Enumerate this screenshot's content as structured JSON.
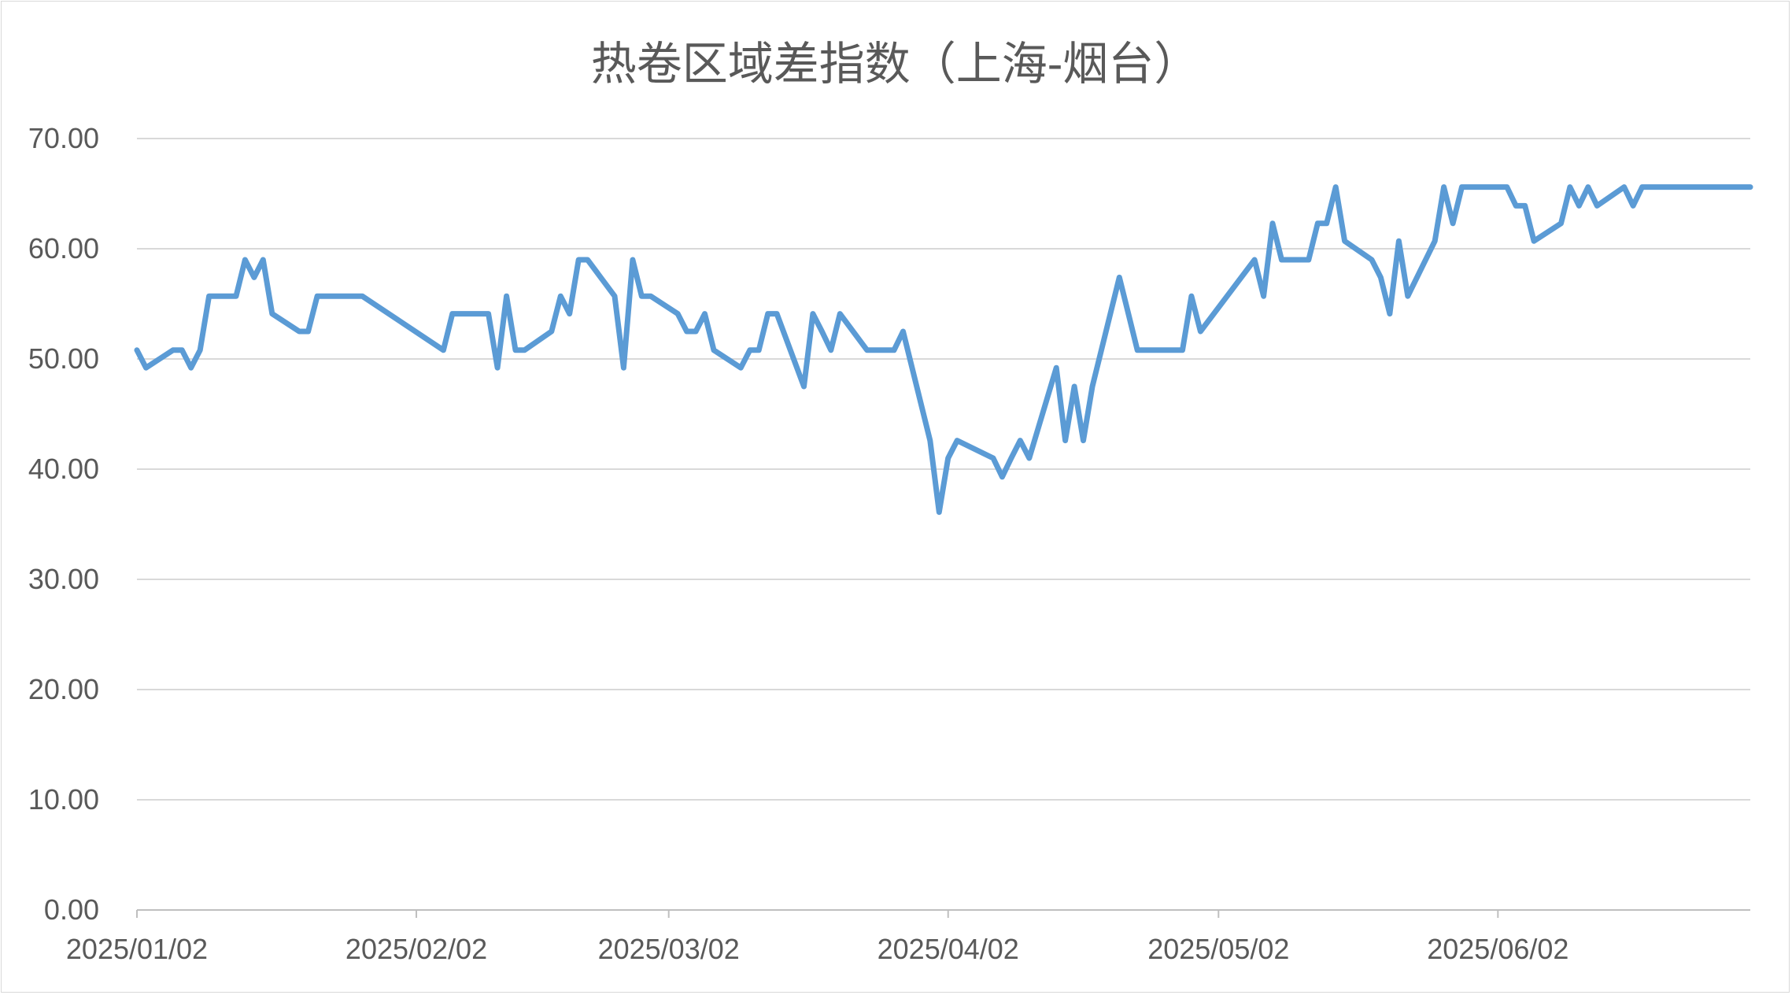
{
  "chart_data": {
    "type": "line",
    "title": "热卷区域差指数（上海-烟台）",
    "xlabel": "",
    "ylabel": "",
    "ylim": [
      0,
      70
    ],
    "yticks": [
      "0.00",
      "10.00",
      "20.00",
      "30.00",
      "40.00",
      "50.00",
      "60.00",
      "70.00"
    ],
    "xticks": [
      "2025/01/02",
      "2025/02/02",
      "2025/03/02",
      "2025/04/02",
      "2025/05/02",
      "2025/06/02"
    ],
    "grid": true,
    "color": "#5b9bd5",
    "series": [
      {
        "x": [
          "2025-01-02",
          "2025-01-03",
          "2025-01-06",
          "2025-01-07",
          "2025-01-08",
          "2025-01-09",
          "2025-01-10",
          "2025-01-13",
          "2025-01-14",
          "2025-01-15",
          "2025-01-16",
          "2025-01-17",
          "2025-01-20",
          "2025-01-21",
          "2025-01-22",
          "2025-01-23",
          "2025-01-24",
          "2025-01-27",
          "2025-02-05",
          "2025-02-06",
          "2025-02-07",
          "2025-02-10",
          "2025-02-11",
          "2025-02-12",
          "2025-02-13",
          "2025-02-14",
          "2025-02-17",
          "2025-02-18",
          "2025-02-19",
          "2025-02-20",
          "2025-02-21",
          "2025-02-24",
          "2025-02-25",
          "2025-02-26",
          "2025-02-27",
          "2025-02-28",
          "2025-03-03",
          "2025-03-04",
          "2025-03-05",
          "2025-03-06",
          "2025-03-07",
          "2025-03-10",
          "2025-03-11",
          "2025-03-12",
          "2025-03-13",
          "2025-03-14",
          "2025-03-17",
          "2025-03-18",
          "2025-03-19",
          "2025-03-20",
          "2025-03-21",
          "2025-03-24",
          "2025-03-25",
          "2025-03-26",
          "2025-03-27",
          "2025-03-28",
          "2025-03-31",
          "2025-04-01",
          "2025-04-02",
          "2025-04-03",
          "2025-04-07",
          "2025-04-08",
          "2025-04-09",
          "2025-04-10",
          "2025-04-11",
          "2025-04-14",
          "2025-04-15",
          "2025-04-16",
          "2025-04-17",
          "2025-04-18",
          "2025-04-21",
          "2025-04-22",
          "2025-04-23",
          "2025-04-24",
          "2025-04-25",
          "2025-04-28",
          "2025-04-29",
          "2025-04-30",
          "2025-05-06",
          "2025-05-07",
          "2025-05-08",
          "2025-05-09",
          "2025-05-12",
          "2025-05-13",
          "2025-05-14",
          "2025-05-15",
          "2025-05-16",
          "2025-05-19",
          "2025-05-20",
          "2025-05-21",
          "2025-05-22",
          "2025-05-23",
          "2025-05-26",
          "2025-05-27",
          "2025-05-28",
          "2025-05-29",
          "2025-05-30",
          "2025-06-03",
          "2025-06-04",
          "2025-06-05",
          "2025-06-06",
          "2025-06-09",
          "2025-06-10",
          "2025-06-11",
          "2025-06-12",
          "2025-06-13",
          "2025-06-16",
          "2025-06-17",
          "2025-06-18",
          "2025-06-19",
          "2025-06-20",
          "2025-06-23",
          "2025-06-24",
          "2025-06-25",
          "2025-06-26",
          "2025-06-27",
          "2025-06-30"
        ],
        "values": [
          50.8,
          49.2,
          50.8,
          50.8,
          49.2,
          50.8,
          55.7,
          55.7,
          59.0,
          57.4,
          59.0,
          54.1,
          52.5,
          52.5,
          55.7,
          55.7,
          55.7,
          55.7,
          50.8,
          54.1,
          54.1,
          54.1,
          49.2,
          55.7,
          50.8,
          50.8,
          52.5,
          55.7,
          54.1,
          59.0,
          59.0,
          55.7,
          49.2,
          59.0,
          55.7,
          55.7,
          54.1,
          52.5,
          52.5,
          54.1,
          50.8,
          49.2,
          50.8,
          50.8,
          54.1,
          54.1,
          47.5,
          54.1,
          52.5,
          50.8,
          54.1,
          50.8,
          50.8,
          50.8,
          50.8,
          52.5,
          42.6,
          36.1,
          41.0,
          42.6,
          41.0,
          39.3,
          41.0,
          42.6,
          41.0,
          49.2,
          42.6,
          47.5,
          42.6,
          47.5,
          57.4,
          54.1,
          50.8,
          50.8,
          50.8,
          50.8,
          55.7,
          52.5,
          59.0,
          55.7,
          62.3,
          59.0,
          59.0,
          62.3,
          62.3,
          65.6,
          60.7,
          59.0,
          57.4,
          54.1,
          60.7,
          55.7,
          60.7,
          65.6,
          62.3,
          65.6,
          65.6,
          65.6,
          63.9,
          63.9,
          60.7,
          62.3,
          65.6,
          63.9,
          65.6,
          63.9,
          65.6,
          63.9,
          65.6,
          65.6,
          65.6,
          65.6,
          65.6,
          65.6,
          65.6,
          65.6,
          65.6
        ]
      }
    ]
  }
}
